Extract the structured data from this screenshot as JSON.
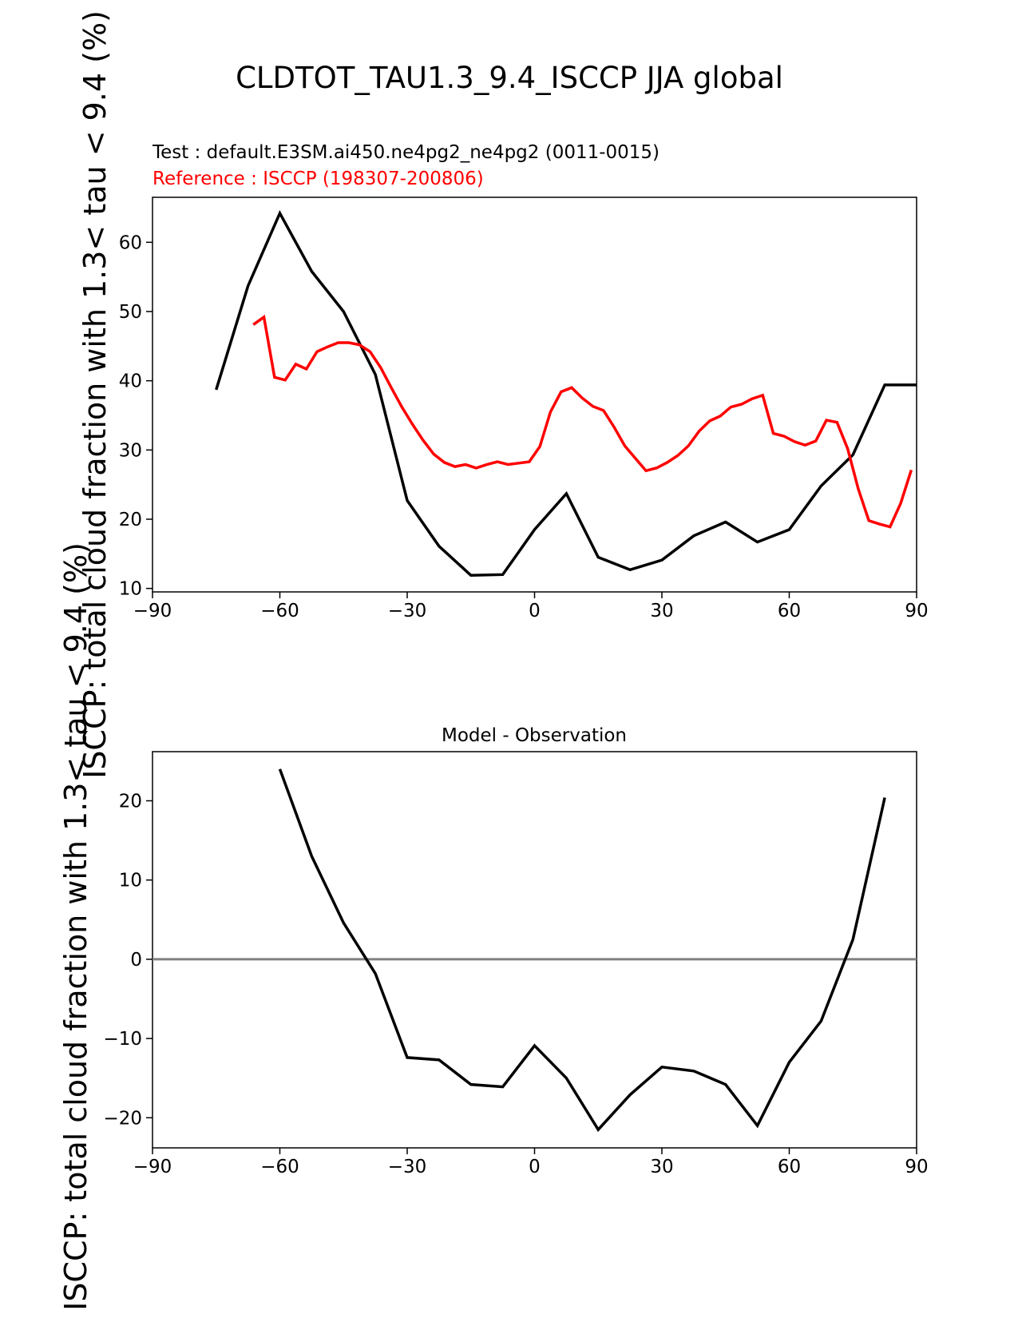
{
  "figure": {
    "title": "CLDTOT_TAU1.3_9.4_ISCCP JJA global",
    "test_label": "Test : default.E3SM.ai450.ne4pg2_ne4pg2 (0011-0015)",
    "reference_label": "Reference : ISCCP (198307-200806)",
    "test_color": "#000000",
    "reference_color": "#ff0000",
    "zero_line_color": "#808080"
  },
  "chart_data": [
    {
      "type": "line",
      "title": "",
      "ylabel": "ISCCP: total cloud fraction with 1.3< tau < 9.4 (%)",
      "xlabel": "",
      "xlim": [
        -90,
        90
      ],
      "ylim": [
        9.5,
        66.5
      ],
      "xticks": [
        "−90",
        "−60",
        "−30",
        "0",
        "30",
        "60",
        "90"
      ],
      "yticks": [
        "10",
        "20",
        "30",
        "40",
        "50",
        "60"
      ],
      "grid": false,
      "series": [
        {
          "name": "Test",
          "color": "#000000",
          "x": [
            -75,
            -67.5,
            -60,
            -52.5,
            -45,
            -37.5,
            -30,
            -22.5,
            -15,
            -7.5,
            0,
            7.5,
            15,
            22.5,
            30,
            37.5,
            45,
            52.5,
            60,
            67.5,
            75,
            82.5,
            90
          ],
          "y": [
            38.7,
            53.7,
            64.2,
            55.8,
            50.0,
            40.9,
            22.7,
            16.1,
            11.9,
            12.0,
            18.5,
            23.7,
            14.5,
            12.7,
            14.1,
            17.6,
            19.6,
            16.7,
            18.5,
            24.8,
            29.3,
            39.4,
            39.4
          ]
        },
        {
          "name": "Reference",
          "color": "#ff0000",
          "x": [
            -66.25,
            -63.75,
            -61.25,
            -58.75,
            -56.25,
            -53.75,
            -51.25,
            -48.75,
            -46.25,
            -43.75,
            -41.25,
            -38.75,
            -36.25,
            -33.75,
            -31.25,
            -28.75,
            -26.25,
            -23.75,
            -21.25,
            -18.75,
            -16.25,
            -13.75,
            -11.25,
            -8.75,
            -6.25,
            -3.75,
            -1.25,
            1.25,
            3.75,
            6.25,
            8.75,
            11.25,
            13.75,
            16.25,
            18.75,
            21.25,
            23.75,
            26.25,
            28.75,
            31.25,
            33.75,
            36.25,
            38.75,
            41.25,
            43.75,
            46.25,
            48.75,
            51.25,
            53.75,
            56.25,
            58.75,
            61.25,
            63.75,
            66.25,
            68.75,
            71.25,
            73.75,
            76.25,
            78.75,
            81.25,
            83.75,
            86.25,
            88.75
          ],
          "y": [
            48.1,
            49.2,
            40.5,
            40.1,
            42.4,
            41.7,
            44.2,
            44.9,
            45.5,
            45.5,
            45.2,
            44.2,
            41.9,
            39.0,
            36.2,
            33.7,
            31.4,
            29.4,
            28.2,
            27.6,
            27.9,
            27.4,
            27.9,
            28.3,
            27.9,
            28.1,
            28.3,
            30.5,
            35.5,
            38.4,
            39.0,
            37.5,
            36.3,
            35.7,
            33.3,
            30.6,
            28.8,
            27.0,
            27.4,
            28.2,
            29.2,
            30.6,
            32.7,
            34.2,
            34.9,
            36.2,
            36.6,
            37.4,
            37.9,
            32.4,
            32.0,
            31.2,
            30.7,
            31.3,
            34.3,
            34.0,
            30.2,
            24.4,
            19.8,
            19.3,
            18.9,
            22.3,
            27.1
          ]
        }
      ]
    },
    {
      "type": "line",
      "title": "Model - Observation",
      "ylabel": "ISCCP: total cloud fraction with 1.3< tau < 9.4 (%)",
      "xlabel": "",
      "xlim": [
        -90,
        90
      ],
      "ylim": [
        -23.8,
        26.2
      ],
      "xticks": [
        "−90",
        "−60",
        "−30",
        "0",
        "30",
        "60",
        "90"
      ],
      "yticks": [
        "−20",
        "−10",
        "0",
        "10",
        "20"
      ],
      "grid": false,
      "zero_line": true,
      "series": [
        {
          "name": "",
          "color": "#000000",
          "x": [
            -60,
            -52.5,
            -45,
            -37.5,
            -30,
            -22.5,
            -15,
            -7.5,
            0,
            7.5,
            15,
            22.5,
            30,
            37.5,
            45,
            52.5,
            60,
            67.5,
            75,
            82.5
          ],
          "y": [
            24.0,
            13.0,
            4.6,
            -1.8,
            -12.4,
            -12.7,
            -15.8,
            -16.1,
            -10.9,
            -15.0,
            -21.5,
            -17.1,
            -13.6,
            -14.1,
            -15.8,
            -21.0,
            -13.0,
            -7.8,
            2.5,
            20.4
          ]
        }
      ]
    }
  ]
}
